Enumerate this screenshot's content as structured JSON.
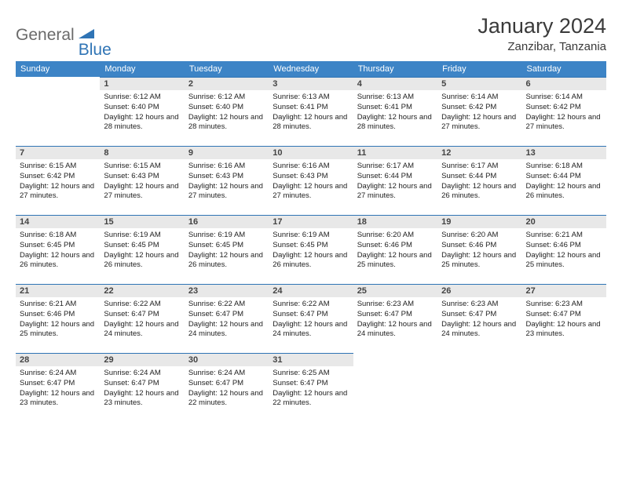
{
  "logo": {
    "part1": "General",
    "part2": "Blue"
  },
  "title": "January 2024",
  "location": "Zanzibar, Tanzania",
  "weekday_header_bg": "#3d84c6",
  "weekday_header_fg": "#ffffff",
  "daynum_bg": "#e8e8e8",
  "border_color": "#2f74b5",
  "weekdays": [
    "Sunday",
    "Monday",
    "Tuesday",
    "Wednesday",
    "Thursday",
    "Friday",
    "Saturday"
  ],
  "weeks": [
    [
      null,
      {
        "n": "1",
        "sr": "6:12 AM",
        "ss": "6:40 PM",
        "dl": "12 hours and 28 minutes."
      },
      {
        "n": "2",
        "sr": "6:12 AM",
        "ss": "6:40 PM",
        "dl": "12 hours and 28 minutes."
      },
      {
        "n": "3",
        "sr": "6:13 AM",
        "ss": "6:41 PM",
        "dl": "12 hours and 28 minutes."
      },
      {
        "n": "4",
        "sr": "6:13 AM",
        "ss": "6:41 PM",
        "dl": "12 hours and 28 minutes."
      },
      {
        "n": "5",
        "sr": "6:14 AM",
        "ss": "6:42 PM",
        "dl": "12 hours and 27 minutes."
      },
      {
        "n": "6",
        "sr": "6:14 AM",
        "ss": "6:42 PM",
        "dl": "12 hours and 27 minutes."
      }
    ],
    [
      {
        "n": "7",
        "sr": "6:15 AM",
        "ss": "6:42 PM",
        "dl": "12 hours and 27 minutes."
      },
      {
        "n": "8",
        "sr": "6:15 AM",
        "ss": "6:43 PM",
        "dl": "12 hours and 27 minutes."
      },
      {
        "n": "9",
        "sr": "6:16 AM",
        "ss": "6:43 PM",
        "dl": "12 hours and 27 minutes."
      },
      {
        "n": "10",
        "sr": "6:16 AM",
        "ss": "6:43 PM",
        "dl": "12 hours and 27 minutes."
      },
      {
        "n": "11",
        "sr": "6:17 AM",
        "ss": "6:44 PM",
        "dl": "12 hours and 27 minutes."
      },
      {
        "n": "12",
        "sr": "6:17 AM",
        "ss": "6:44 PM",
        "dl": "12 hours and 26 minutes."
      },
      {
        "n": "13",
        "sr": "6:18 AM",
        "ss": "6:44 PM",
        "dl": "12 hours and 26 minutes."
      }
    ],
    [
      {
        "n": "14",
        "sr": "6:18 AM",
        "ss": "6:45 PM",
        "dl": "12 hours and 26 minutes."
      },
      {
        "n": "15",
        "sr": "6:19 AM",
        "ss": "6:45 PM",
        "dl": "12 hours and 26 minutes."
      },
      {
        "n": "16",
        "sr": "6:19 AM",
        "ss": "6:45 PM",
        "dl": "12 hours and 26 minutes."
      },
      {
        "n": "17",
        "sr": "6:19 AM",
        "ss": "6:45 PM",
        "dl": "12 hours and 26 minutes."
      },
      {
        "n": "18",
        "sr": "6:20 AM",
        "ss": "6:46 PM",
        "dl": "12 hours and 25 minutes."
      },
      {
        "n": "19",
        "sr": "6:20 AM",
        "ss": "6:46 PM",
        "dl": "12 hours and 25 minutes."
      },
      {
        "n": "20",
        "sr": "6:21 AM",
        "ss": "6:46 PM",
        "dl": "12 hours and 25 minutes."
      }
    ],
    [
      {
        "n": "21",
        "sr": "6:21 AM",
        "ss": "6:46 PM",
        "dl": "12 hours and 25 minutes."
      },
      {
        "n": "22",
        "sr": "6:22 AM",
        "ss": "6:47 PM",
        "dl": "12 hours and 24 minutes."
      },
      {
        "n": "23",
        "sr": "6:22 AM",
        "ss": "6:47 PM",
        "dl": "12 hours and 24 minutes."
      },
      {
        "n": "24",
        "sr": "6:22 AM",
        "ss": "6:47 PM",
        "dl": "12 hours and 24 minutes."
      },
      {
        "n": "25",
        "sr": "6:23 AM",
        "ss": "6:47 PM",
        "dl": "12 hours and 24 minutes."
      },
      {
        "n": "26",
        "sr": "6:23 AM",
        "ss": "6:47 PM",
        "dl": "12 hours and 24 minutes."
      },
      {
        "n": "27",
        "sr": "6:23 AM",
        "ss": "6:47 PM",
        "dl": "12 hours and 23 minutes."
      }
    ],
    [
      {
        "n": "28",
        "sr": "6:24 AM",
        "ss": "6:47 PM",
        "dl": "12 hours and 23 minutes."
      },
      {
        "n": "29",
        "sr": "6:24 AM",
        "ss": "6:47 PM",
        "dl": "12 hours and 23 minutes."
      },
      {
        "n": "30",
        "sr": "6:24 AM",
        "ss": "6:47 PM",
        "dl": "12 hours and 22 minutes."
      },
      {
        "n": "31",
        "sr": "6:25 AM",
        "ss": "6:47 PM",
        "dl": "12 hours and 22 minutes."
      },
      null,
      null,
      null
    ]
  ],
  "labels": {
    "sunrise": "Sunrise:",
    "sunset": "Sunset:",
    "daylight": "Daylight:"
  }
}
